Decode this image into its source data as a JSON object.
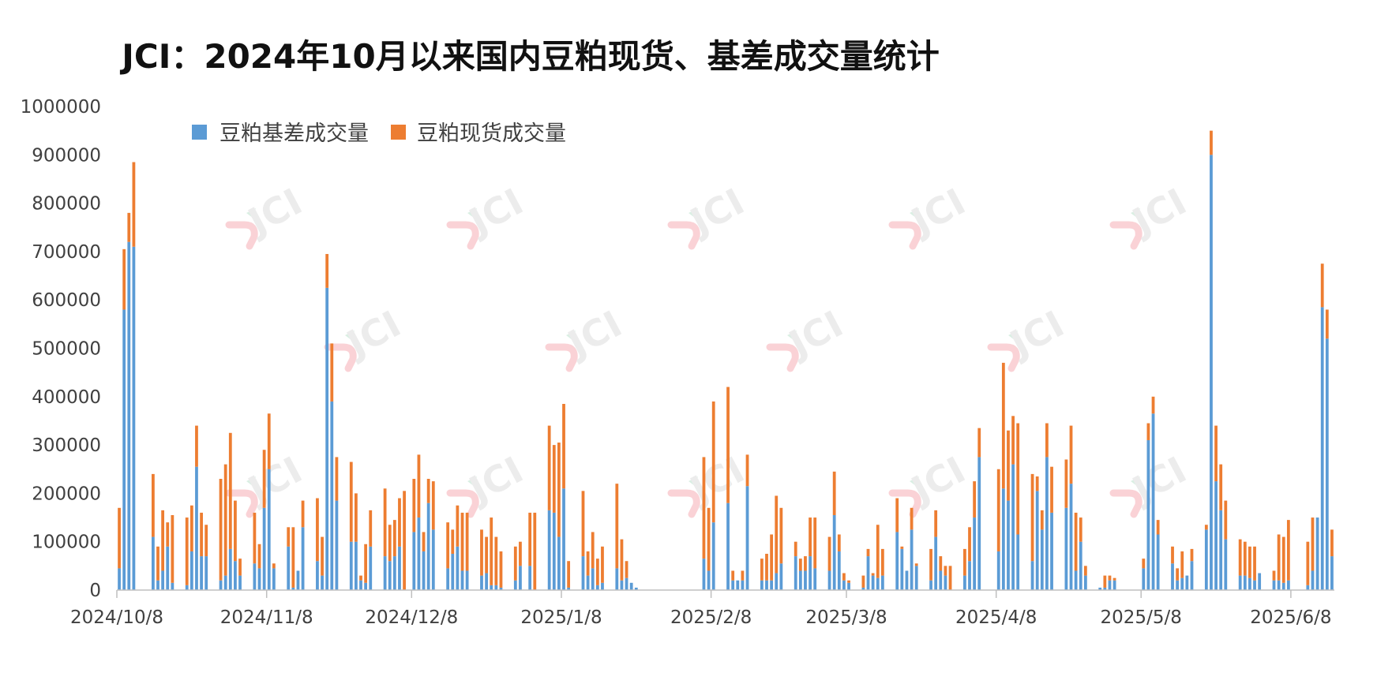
{
  "chart_data": {
    "type": "bar",
    "stacked": true,
    "title": "JCI：2024年10月以来国内豆粕现货、基差成交量统计",
    "watermark_text": "JCI",
    "legend_position": "top-left",
    "grid": false,
    "ylim": [
      0,
      1000000
    ],
    "yticks": [
      0,
      100000,
      200000,
      300000,
      400000,
      500000,
      600000,
      700000,
      800000,
      900000,
      1000000
    ],
    "ytick_labels": [
      "0",
      "100000",
      "200000",
      "300000",
      "400000",
      "500000",
      "600000",
      "700000",
      "800000",
      "900000",
      "1000000"
    ],
    "xticks": [
      "2024/10/8",
      "2024/11/8",
      "2024/12/8",
      "2025/1/8",
      "2025/2/8",
      "2025/3/8",
      "2025/4/8",
      "2025/5/8",
      "2025/6/8"
    ],
    "x_start": "2024/10/8",
    "colors": {
      "basis": "#5B9BD5",
      "spot": "#ED7D31"
    },
    "series": [
      {
        "name": "豆粕基差成交量",
        "color": "#5B9BD5",
        "values": [
          45000,
          580000,
          720000,
          710000,
          null,
          null,
          null,
          110000,
          20000,
          40000,
          90000,
          15000,
          null,
          null,
          10000,
          80000,
          255000,
          70000,
          70000,
          null,
          null,
          20000,
          30000,
          85000,
          60000,
          30000,
          null,
          null,
          55000,
          45000,
          170000,
          250000,
          45000,
          null,
          null,
          90000,
          5000,
          40000,
          130000,
          null,
          null,
          60000,
          30000,
          625000,
          390000,
          185000,
          null,
          null,
          100000,
          100000,
          20000,
          15000,
          90000,
          null,
          null,
          70000,
          60000,
          70000,
          90000,
          0,
          null,
          120000,
          150000,
          80000,
          180000,
          125000,
          null,
          null,
          45000,
          75000,
          90000,
          40000,
          40000,
          null,
          null,
          30000,
          35000,
          10000,
          10000,
          5000,
          null,
          null,
          20000,
          50000,
          0,
          50000,
          0,
          null,
          null,
          165000,
          160000,
          110000,
          210000,
          5000,
          null,
          null,
          70000,
          30000,
          45000,
          10000,
          15000,
          null,
          null,
          45000,
          20000,
          25000,
          15000,
          5000,
          null,
          null,
          null,
          null,
          null,
          null,
          null,
          null,
          null,
          null,
          null,
          null,
          null,
          65000,
          40000,
          140000,
          null,
          null,
          180000,
          20000,
          20000,
          20000,
          215000,
          null,
          null,
          20000,
          20000,
          20000,
          35000,
          55000,
          null,
          null,
          70000,
          40000,
          40000,
          70000,
          45000,
          null,
          null,
          40000,
          155000,
          80000,
          20000,
          15000,
          null,
          null,
          5000,
          70000,
          30000,
          25000,
          30000,
          null,
          null,
          120000,
          85000,
          40000,
          125000,
          50000,
          null,
          null,
          20000,
          110000,
          40000,
          30000,
          0,
          null,
          null,
          30000,
          60000,
          150000,
          275000,
          null,
          null,
          null,
          80000,
          210000,
          185000,
          260000,
          115000,
          null,
          null,
          60000,
          205000,
          125000,
          275000,
          160000,
          null,
          null,
          170000,
          220000,
          40000,
          100000,
          30000,
          null,
          null,
          5000,
          5000,
          20000,
          20000,
          null,
          null,
          null,
          null,
          null,
          45000,
          310000,
          365000,
          115000,
          null,
          null,
          55000,
          20000,
          25000,
          30000,
          60000,
          null,
          null,
          125000,
          900000,
          225000,
          165000,
          105000,
          null,
          null,
          30000,
          30000,
          25000,
          20000,
          35000,
          null,
          null,
          20000,
          20000,
          15000,
          20000,
          null,
          null,
          null,
          10000,
          40000,
          150000,
          585000,
          520000,
          70000
        ]
      },
      {
        "name": "豆粕现货成交量",
        "color": "#ED7D31",
        "values": [
          125000,
          125000,
          60000,
          175000,
          null,
          null,
          null,
          130000,
          70000,
          125000,
          50000,
          140000,
          null,
          null,
          140000,
          95000,
          85000,
          90000,
          65000,
          null,
          null,
          210000,
          230000,
          240000,
          125000,
          35000,
          null,
          null,
          105000,
          50000,
          120000,
          115000,
          10000,
          null,
          null,
          40000,
          125000,
          0,
          55000,
          null,
          null,
          130000,
          80000,
          70000,
          120000,
          90000,
          null,
          null,
          165000,
          100000,
          10000,
          80000,
          75000,
          null,
          null,
          140000,
          75000,
          75000,
          100000,
          205000,
          null,
          110000,
          130000,
          40000,
          50000,
          100000,
          null,
          null,
          95000,
          50000,
          85000,
          120000,
          120000,
          null,
          null,
          95000,
          75000,
          140000,
          100000,
          75000,
          null,
          null,
          70000,
          50000,
          0,
          110000,
          160000,
          null,
          null,
          175000,
          140000,
          195000,
          175000,
          55000,
          null,
          null,
          135000,
          50000,
          75000,
          55000,
          75000,
          null,
          null,
          175000,
          85000,
          35000,
          0,
          0,
          null,
          null,
          null,
          null,
          null,
          null,
          null,
          null,
          null,
          null,
          null,
          null,
          null,
          210000,
          130000,
          250000,
          null,
          null,
          240000,
          20000,
          0,
          20000,
          65000,
          null,
          null,
          45000,
          55000,
          95000,
          160000,
          115000,
          null,
          null,
          30000,
          25000,
          30000,
          80000,
          105000,
          null,
          null,
          70000,
          90000,
          35000,
          15000,
          5000,
          null,
          null,
          25000,
          15000,
          5000,
          110000,
          55000,
          null,
          null,
          70000,
          5000,
          0,
          45000,
          5000,
          null,
          null,
          65000,
          55000,
          30000,
          20000,
          50000,
          null,
          null,
          55000,
          70000,
          75000,
          60000,
          null,
          null,
          null,
          170000,
          260000,
          145000,
          100000,
          230000,
          null,
          null,
          180000,
          30000,
          40000,
          70000,
          95000,
          null,
          null,
          100000,
          120000,
          120000,
          50000,
          20000,
          null,
          null,
          0,
          25000,
          10000,
          5000,
          null,
          null,
          null,
          null,
          null,
          20000,
          35000,
          35000,
          30000,
          null,
          null,
          35000,
          25000,
          55000,
          0,
          25000,
          null,
          null,
          10000,
          50000,
          115000,
          95000,
          80000,
          null,
          null,
          75000,
          70000,
          65000,
          70000,
          0,
          null,
          null,
          20000,
          95000,
          95000,
          125000,
          null,
          null,
          null,
          90000,
          110000,
          0,
          90000,
          60000,
          55000
        ]
      }
    ]
  }
}
